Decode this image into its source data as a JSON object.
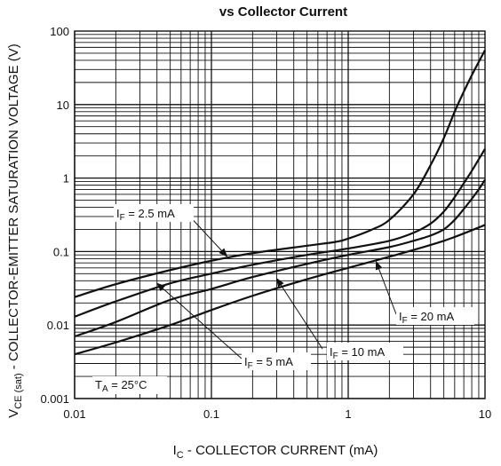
{
  "chart_data": {
    "type": "line",
    "title": "vs Collector Current",
    "xlabel": {
      "main": "I",
      "sub": "C",
      "rest": " - COLLECTOR CURRENT (mA)"
    },
    "ylabel": {
      "main": "V",
      "sub": "CE (sat)",
      "rest": " - COLLECTOR-EMITTER SATURATION VOLTAGE (V)"
    },
    "xscale": "log",
    "yscale": "log",
    "xlim": [
      0.01,
      10
    ],
    "ylim": [
      0.001,
      100
    ],
    "grid": true,
    "x_ticks": [
      "0.01",
      "0.1",
      "1",
      "10"
    ],
    "y_ticks": [
      "0.001",
      "0.01",
      "0.1",
      "1",
      "10",
      "100"
    ],
    "series": [
      {
        "name": "I_F = 2.5 mA",
        "x": [
          0.01,
          0.02,
          0.05,
          0.1,
          0.2,
          0.5,
          0.8,
          1,
          1.5,
          2,
          3,
          4,
          5,
          6,
          7,
          8,
          9,
          10
        ],
        "y": [
          0.024,
          0.036,
          0.056,
          0.075,
          0.095,
          0.12,
          0.135,
          0.15,
          0.2,
          0.27,
          0.6,
          1.5,
          3.5,
          8,
          15,
          25,
          38,
          55
        ]
      },
      {
        "name": "I_F = 5 mA",
        "x": [
          0.01,
          0.02,
          0.05,
          0.1,
          0.2,
          0.5,
          1,
          2,
          3,
          4,
          5,
          6,
          7,
          8,
          9,
          10
        ],
        "y": [
          0.013,
          0.021,
          0.037,
          0.05,
          0.066,
          0.09,
          0.11,
          0.14,
          0.18,
          0.24,
          0.35,
          0.55,
          0.85,
          1.25,
          1.8,
          2.5
        ]
      },
      {
        "name": "I_F = 10 mA",
        "x": [
          0.01,
          0.02,
          0.05,
          0.1,
          0.2,
          0.5,
          1,
          2,
          3,
          4,
          5,
          6,
          7,
          8,
          9,
          10
        ],
        "y": [
          0.007,
          0.011,
          0.022,
          0.031,
          0.045,
          0.068,
          0.09,
          0.115,
          0.14,
          0.165,
          0.2,
          0.27,
          0.38,
          0.52,
          0.7,
          0.95
        ]
      },
      {
        "name": "I_F = 20 mA",
        "x": [
          0.01,
          0.02,
          0.05,
          0.1,
          0.2,
          0.5,
          1,
          2,
          5,
          10
        ],
        "y": [
          0.004,
          0.0058,
          0.01,
          0.016,
          0.025,
          0.042,
          0.06,
          0.085,
          0.14,
          0.23
        ]
      }
    ],
    "annotations": [
      {
        "main": "I",
        "sub": "F",
        "rest": " = 2.5 mA",
        "arrow_to": [
          0.13,
          0.086
        ]
      },
      {
        "main": "I",
        "sub": "F",
        "rest": " = 5 mA",
        "arrow_to": [
          0.04,
          0.037
        ]
      },
      {
        "main": "I",
        "sub": "F",
        "rest": " = 10 mA",
        "arrow_to": [
          0.3,
          0.043
        ]
      },
      {
        "main": "I",
        "sub": "F",
        "rest": " = 20 mA",
        "arrow_to": [
          1.6,
          0.073
        ]
      },
      {
        "main": "T",
        "sub": "A",
        "rest": " = 25°C"
      }
    ]
  }
}
